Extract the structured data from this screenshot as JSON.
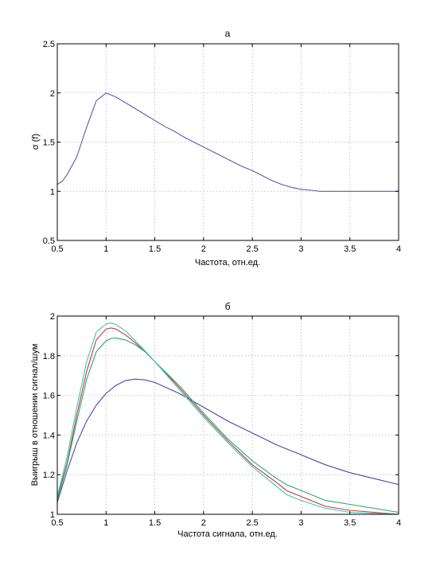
{
  "chart_data": [
    {
      "type": "line",
      "title": "а",
      "xlabel": "Частота, отн.ед.",
      "ylabel": "σ (f)",
      "xlim": [
        0.5,
        4
      ],
      "ylim": [
        0.5,
        2.5
      ],
      "xticks": [
        "0.5",
        "1",
        "1.5",
        "2",
        "2.5",
        "3",
        "3.5",
        "4"
      ],
      "yticks": [
        "0.5",
        "1",
        "1.5",
        "2",
        "2.5"
      ],
      "grid": true,
      "series": [
        {
          "color": "#5a5ab4",
          "x": [
            0.5,
            0.55,
            0.6,
            0.7,
            0.8,
            0.9,
            1.0,
            1.1,
            1.2,
            1.3,
            1.4,
            1.5,
            1.6,
            1.7,
            1.8,
            1.9,
            2.0,
            2.1,
            2.2,
            2.3,
            2.4,
            2.5,
            2.6,
            2.7,
            2.8,
            2.9,
            3.0,
            3.1,
            3.2,
            3.3,
            3.4,
            3.5,
            3.6,
            3.7,
            3.8,
            3.9,
            4.0
          ],
          "y": [
            1.07,
            1.1,
            1.17,
            1.35,
            1.65,
            1.92,
            2.0,
            1.96,
            1.9,
            1.84,
            1.78,
            1.72,
            1.66,
            1.61,
            1.55,
            1.5,
            1.45,
            1.4,
            1.35,
            1.3,
            1.25,
            1.21,
            1.16,
            1.11,
            1.07,
            1.04,
            1.02,
            1.01,
            1.0,
            1.0,
            1.0,
            1.0,
            1.0,
            1.0,
            1.0,
            1.0,
            1.0
          ]
        }
      ]
    },
    {
      "type": "line",
      "title": "б",
      "xlabel": "Частота сигнала, отн.ед.",
      "ylabel": "Выигрыш в отношении сигнал/шум",
      "xlim": [
        0.5,
        4
      ],
      "ylim": [
        1,
        2
      ],
      "xticks": [
        "0.5",
        "1",
        "1.5",
        "2",
        "2.5",
        "3",
        "3.5",
        "4"
      ],
      "yticks": [
        "1",
        "1.2",
        "1.4",
        "1.6",
        "1.8",
        "2"
      ],
      "grid": true,
      "series": [
        {
          "color": "#4747b0",
          "x": [
            0.5,
            0.6,
            0.7,
            0.8,
            0.9,
            1.0,
            1.1,
            1.2,
            1.3,
            1.4,
            1.5,
            1.75,
            2.0,
            2.25,
            2.5,
            2.75,
            3.0,
            3.25,
            3.5,
            3.75,
            4.0
          ],
          "y": [
            1.06,
            1.22,
            1.36,
            1.47,
            1.55,
            1.61,
            1.65,
            1.675,
            1.682,
            1.678,
            1.665,
            1.61,
            1.54,
            1.47,
            1.41,
            1.35,
            1.3,
            1.25,
            1.21,
            1.18,
            1.15
          ]
        },
        {
          "color": "#c23b3b",
          "x": [
            0.5,
            0.6,
            0.7,
            0.8,
            0.9,
            1.0,
            1.05,
            1.1,
            1.2,
            1.3,
            1.4,
            1.5,
            1.75,
            2.0,
            2.25,
            2.5,
            2.75,
            2.85,
            3.0,
            3.25,
            3.5,
            3.75,
            4.0
          ],
          "y": [
            1.08,
            1.26,
            1.5,
            1.72,
            1.88,
            1.935,
            1.94,
            1.935,
            1.905,
            1.865,
            1.82,
            1.77,
            1.64,
            1.5,
            1.37,
            1.25,
            1.16,
            1.12,
            1.09,
            1.04,
            1.02,
            1.01,
            1.0
          ]
        },
        {
          "color": "#2fa56a",
          "x": [
            0.5,
            0.6,
            0.7,
            0.8,
            0.9,
            1.0,
            1.05,
            1.1,
            1.2,
            1.3,
            1.4,
            1.5,
            1.75,
            2.0,
            2.25,
            2.5,
            2.75,
            2.85,
            3.0,
            3.25,
            3.5,
            3.75,
            4.0
          ],
          "y": [
            1.07,
            1.25,
            1.47,
            1.68,
            1.82,
            1.875,
            1.887,
            1.89,
            1.88,
            1.855,
            1.82,
            1.77,
            1.65,
            1.51,
            1.38,
            1.27,
            1.18,
            1.15,
            1.12,
            1.07,
            1.05,
            1.03,
            1.01
          ]
        },
        {
          "color": "#3ec7b5",
          "x": [
            0.5,
            0.6,
            0.7,
            0.8,
            0.9,
            1.0,
            1.05,
            1.1,
            1.2,
            1.3,
            1.4,
            1.5,
            1.75,
            2.0,
            2.25,
            2.5,
            2.75,
            2.85,
            3.0,
            3.25,
            3.5,
            3.75,
            4.0
          ],
          "y": [
            1.09,
            1.29,
            1.54,
            1.77,
            1.92,
            1.96,
            1.965,
            1.958,
            1.925,
            1.875,
            1.825,
            1.77,
            1.63,
            1.49,
            1.36,
            1.24,
            1.14,
            1.1,
            1.07,
            1.03,
            1.01,
            1.005,
            1.0
          ]
        }
      ]
    }
  ]
}
